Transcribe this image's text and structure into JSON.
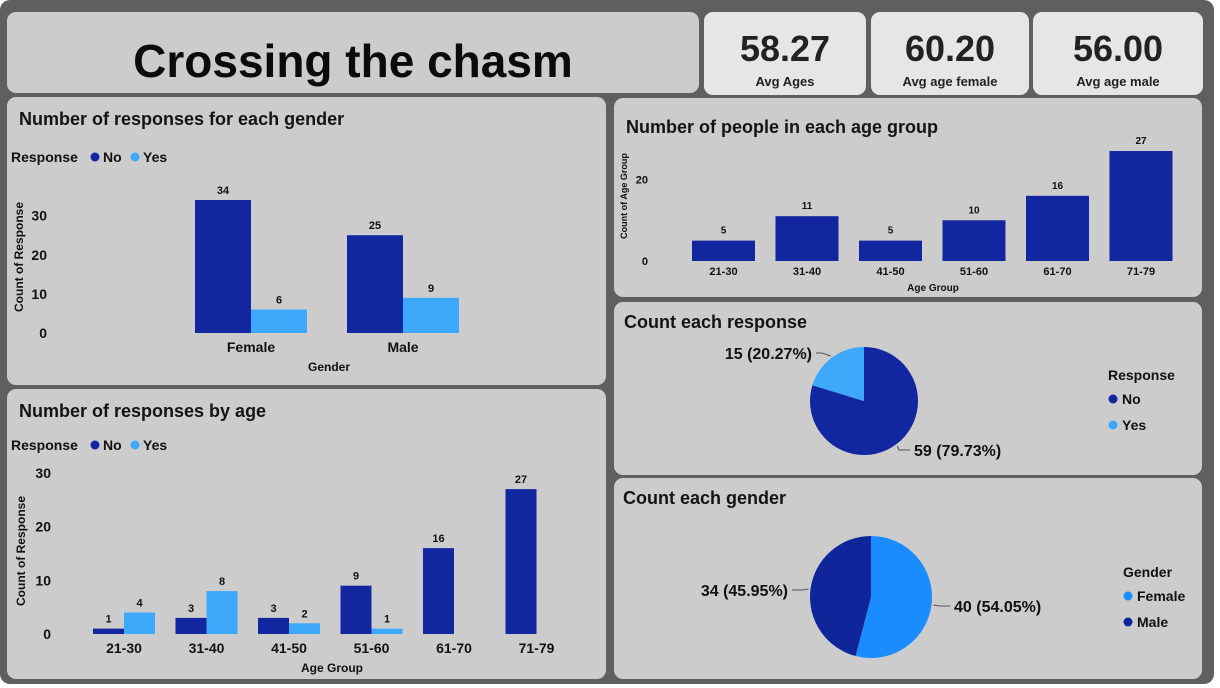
{
  "header": {
    "title": "Crossing the chasm"
  },
  "kpis": [
    {
      "value": "58.27",
      "label": "Avg Ages"
    },
    {
      "value": "60.20",
      "label": "Avg age female"
    },
    {
      "value": "56.00",
      "label": "Avg age male"
    }
  ],
  "colors": {
    "no": "#1226a0",
    "yes": "#3ea8fb",
    "female": "#1a8cff",
    "male": "#11259a"
  },
  "chart_data": [
    {
      "type": "bar",
      "title": "Number of responses for each gender",
      "legend_title": "Response",
      "legend_position": "top-left",
      "categories": [
        "Female",
        "Male"
      ],
      "series": [
        {
          "name": "No",
          "values": [
            34,
            25
          ]
        },
        {
          "name": "Yes",
          "values": [
            6,
            9
          ]
        }
      ],
      "xlabel": "Gender",
      "ylabel": "Count of Response",
      "yticks": [
        0,
        10,
        20,
        30
      ],
      "ylim": [
        0,
        34
      ]
    },
    {
      "type": "bar",
      "title": "Number of responses by age",
      "legend_title": "Response",
      "legend_position": "top-left",
      "categories": [
        "21-30",
        "31-40",
        "41-50",
        "51-60",
        "61-70",
        "71-79"
      ],
      "series": [
        {
          "name": "No",
          "values": [
            1,
            3,
            3,
            9,
            16,
            27
          ]
        },
        {
          "name": "Yes",
          "values": [
            4,
            8,
            2,
            1,
            null,
            null
          ]
        }
      ],
      "xlabel": "Age Group",
      "ylabel": "Count of Response",
      "yticks": [
        0,
        10,
        20,
        30
      ],
      "ylim": [
        0,
        30
      ]
    },
    {
      "type": "bar",
      "title": "Number of people in each age group",
      "categories": [
        "21-30",
        "31-40",
        "41-50",
        "51-60",
        "61-70",
        "71-79"
      ],
      "values": [
        5,
        11,
        5,
        10,
        16,
        27
      ],
      "xlabel": "Age Group",
      "ylabel": "Count of Age Group",
      "yticks": [
        0,
        20
      ],
      "ylim": [
        0,
        27
      ]
    },
    {
      "type": "pie",
      "title": "Count each response",
      "legend_title": "Response",
      "legend_position": "right",
      "slices": [
        {
          "name": "No",
          "value": 59,
          "label": "59 (79.73%)"
        },
        {
          "name": "Yes",
          "value": 15,
          "label": "15 (20.27%)"
        }
      ]
    },
    {
      "type": "pie",
      "title": "Count each gender",
      "legend_title": "Gender",
      "legend_position": "right",
      "slices": [
        {
          "name": "Female",
          "value": 40,
          "label": "40 (54.05%)"
        },
        {
          "name": "Male",
          "value": 34,
          "label": "34 (45.95%)"
        }
      ]
    }
  ]
}
